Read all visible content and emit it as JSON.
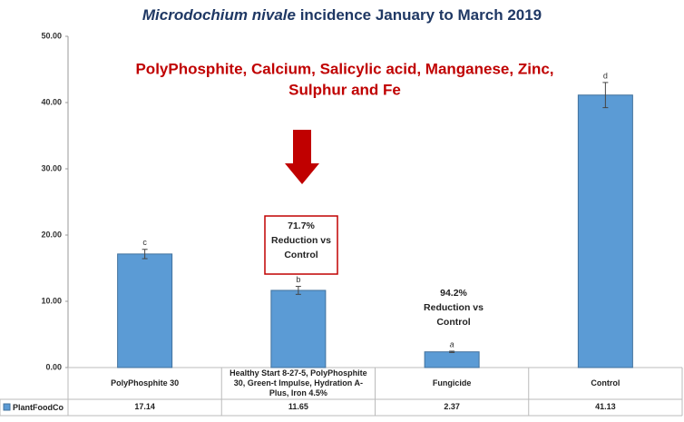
{
  "chart_data": {
    "type": "bar",
    "title": {
      "italic": "Microdochium nivale",
      "rest": "incidence January to March 2019"
    },
    "categories": [
      "PolyPhosphite 30",
      "Healthy Start 8-27-5, PolyPhosphite 30, Green-t Impulse, Hydration A-Plus, Iron 4.5%",
      "Fungicide",
      "Control"
    ],
    "series": [
      {
        "name": "PlantFoodCo",
        "color": "#5b9bd5",
        "values": [
          17.14,
          11.65,
          2.37,
          41.13
        ],
        "errors": [
          0.7,
          0.6,
          0.1,
          1.9
        ],
        "letters": [
          "c",
          "b",
          "a",
          "d"
        ]
      }
    ],
    "ylim": [
      0,
      50
    ],
    "yticks": [
      {
        "value": 0,
        "label": "0.00"
      },
      {
        "value": 10,
        "label": "10.00"
      },
      {
        "value": 20,
        "label": "20.00"
      },
      {
        "value": 30,
        "label": "30.00"
      },
      {
        "value": 40,
        "label": "40.00"
      },
      {
        "value": 50,
        "label": "50.00"
      }
    ],
    "annotations": [
      {
        "lines": [
          "PolyPhosphite, Calcium, Salicylic acid, Manganese, Zinc,",
          "Sulphur and Fe"
        ]
      },
      {
        "lines": [
          "71.7%",
          "Reduction vs",
          "Control"
        ]
      },
      {
        "lines": [
          "94.2%",
          "Reduction vs",
          "Control"
        ]
      }
    ]
  }
}
